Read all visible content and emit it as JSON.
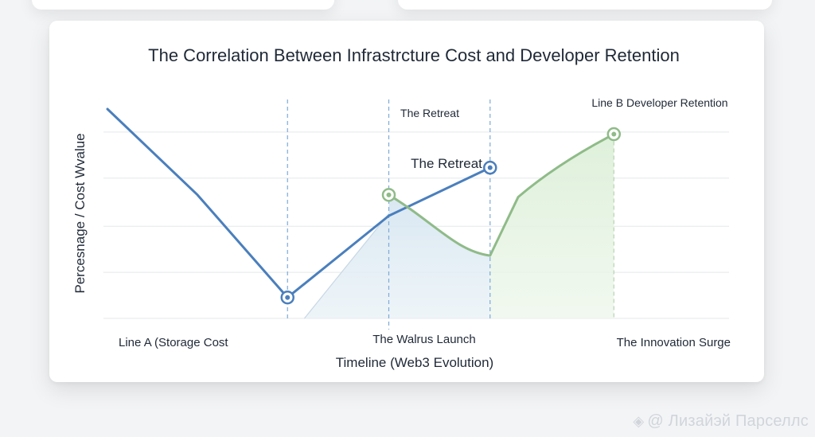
{
  "chart_data": {
    "type": "line",
    "title": "The Correlation Between Infrastrcture Cost and Developer Retention",
    "xlabel": "Timeline (Web3 Evolution)",
    "ylabel": "Percesnage / Cost Wvalue",
    "x_ticks": [
      "Line A (Storage Cost",
      "The Walrus Launch",
      "The Innovation Surge"
    ],
    "x_range": [
      0,
      100
    ],
    "y_range": [
      0,
      100
    ],
    "grid": true,
    "series": [
      {
        "name": "Line A (Storage Cost",
        "color": "#4a7fbd",
        "x": [
          0,
          16,
          32,
          50,
          68
        ],
        "y": [
          100,
          59,
          10,
          49,
          72
        ],
        "markers": [
          2,
          4
        ]
      },
      {
        "name": "Line B Developer Retention",
        "color": "#8fbb88",
        "x": [
          50,
          68,
          73,
          90
        ],
        "y": [
          59,
          30,
          58,
          88
        ],
        "markers": [
          0,
          3
        ]
      }
    ],
    "reference_lines_x": [
      32,
      50,
      68,
      90
    ],
    "annotations": [
      {
        "text": "The Retreat",
        "x": 50,
        "y": 101,
        "size": "small"
      },
      {
        "text": "The Retreat",
        "x": 50,
        "y": 73,
        "size": "large"
      },
      {
        "text": "Line B Developer Retention",
        "x": 87,
        "y": 105,
        "size": "small"
      }
    ]
  },
  "watermark": {
    "icon": "binance-logo-icon",
    "text": "@ Лизайэй Парселлс"
  }
}
